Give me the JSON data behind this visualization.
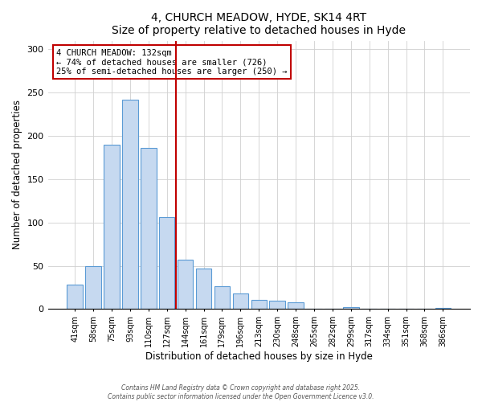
{
  "title": "4, CHURCH MEADOW, HYDE, SK14 4RT",
  "subtitle": "Size of property relative to detached houses in Hyde",
  "xlabel": "Distribution of detached houses by size in Hyde",
  "ylabel": "Number of detached properties",
  "bar_labels": [
    "41sqm",
    "58sqm",
    "75sqm",
    "93sqm",
    "110sqm",
    "127sqm",
    "144sqm",
    "161sqm",
    "179sqm",
    "196sqm",
    "213sqm",
    "230sqm",
    "248sqm",
    "265sqm",
    "282sqm",
    "299sqm",
    "317sqm",
    "334sqm",
    "351sqm",
    "368sqm",
    "386sqm"
  ],
  "bar_values": [
    28,
    50,
    190,
    242,
    186,
    106,
    57,
    47,
    26,
    18,
    11,
    10,
    8,
    0,
    0,
    2,
    0,
    0,
    0,
    0,
    1
  ],
  "bar_color": "#c6d9f0",
  "bar_edge_color": "#5b9bd5",
  "vline_x": 6.0,
  "vline_color": "#c00000",
  "annotation_title": "4 CHURCH MEADOW: 132sqm",
  "annotation_line1": "← 74% of detached houses are smaller (726)",
  "annotation_line2": "25% of semi-detached houses are larger (250) →",
  "ylim": [
    0,
    310
  ],
  "yticks": [
    0,
    50,
    100,
    150,
    200,
    250,
    300
  ],
  "footer1": "Contains HM Land Registry data © Crown copyright and database right 2025.",
  "footer2": "Contains public sector information licensed under the Open Government Licence v3.0."
}
